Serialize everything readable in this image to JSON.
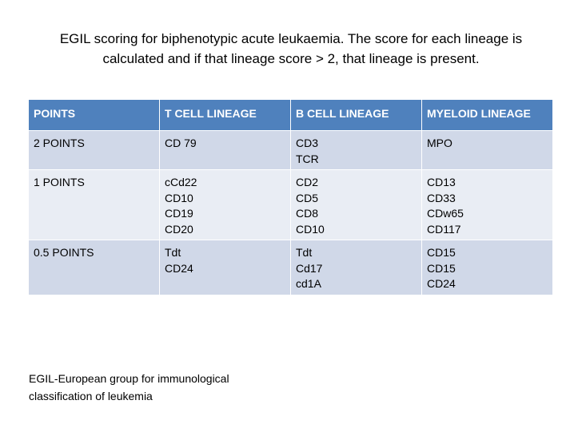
{
  "title_line1": "EGIL scoring for biphenotypic acute leukaemia. The score for each lineage is",
  "title_line2": "calculated and if that lineage score > 2, that lineage is present.",
  "table": {
    "headers": [
      "POINTS",
      "T CELL LINEAGE",
      "B CELL LINEAGE",
      "MYELOID LINEAGE"
    ],
    "rows": [
      {
        "points": "2 POINTS",
        "t_cell": [
          "CD 79"
        ],
        "b_cell": [
          "CD3",
          "TCR"
        ],
        "myeloid": [
          "MPO"
        ]
      },
      {
        "points": "1 POINTS",
        "t_cell": [
          "cCd22",
          "CD10",
          "CD19",
          "CD20"
        ],
        "b_cell": [
          "CD2",
          "CD5",
          "CD8",
          "CD10"
        ],
        "myeloid": [
          "CD13",
          "CD33",
          "CDw65",
          "CD117"
        ]
      },
      {
        "points": "0.5 POINTS",
        "t_cell": [
          "Tdt",
          "CD24"
        ],
        "b_cell": [
          "Tdt",
          "Cd17",
          "cd1A"
        ],
        "myeloid": [
          "CD15",
          "CD15",
          "CD24"
        ]
      }
    ]
  },
  "footnote_line1": "EGIL-European group for immunological",
  "footnote_line2": "classification of leukemia",
  "colors": {
    "header_bg": "#4f81bd",
    "row_odd_bg": "#d0d8e8",
    "row_even_bg": "#e9edf4"
  }
}
